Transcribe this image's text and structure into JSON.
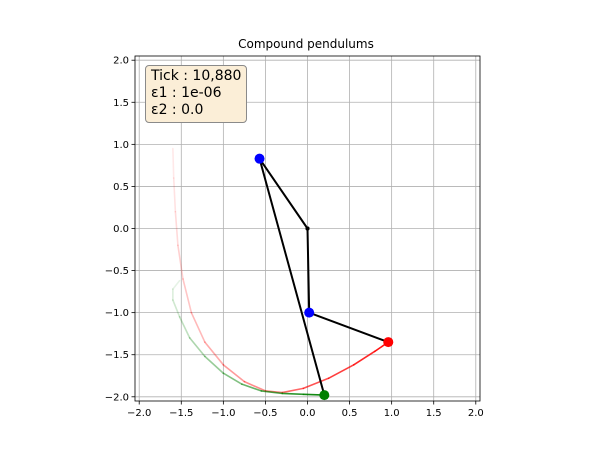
{
  "chart_data": {
    "type": "line",
    "title": "Compound pendulums",
    "xlabel": "",
    "ylabel": "",
    "xlim": [
      -2.05,
      2.05
    ],
    "ylim": [
      -2.05,
      2.05
    ],
    "xticks": [
      -2.0,
      -1.5,
      -1.0,
      -0.5,
      0.0,
      0.5,
      1.0,
      1.5,
      2.0
    ],
    "yticks": [
      -2.0,
      -1.5,
      -1.0,
      -0.5,
      0.0,
      0.5,
      1.0,
      1.5,
      2.0
    ],
    "xtick_labels": [
      "−2.0",
      "−1.5",
      "−1.0",
      "−0.5",
      "0.0",
      "0.5",
      "1.0",
      "1.5",
      "2.0"
    ],
    "ytick_labels": [
      "−2.0",
      "−1.5",
      "−1.0",
      "−0.5",
      "0.0",
      "0.5",
      "1.0",
      "1.5",
      "2.0"
    ],
    "grid": true,
    "info_box": {
      "tick_line": "Tick : 10,880",
      "eps1_line": "ε1 : 1e-06",
      "eps2_line": "ε2 : 0.0"
    },
    "pendulums": [
      {
        "color": "#ff0000",
        "pivot": [
          0.0,
          0.0
        ],
        "bob1": [
          0.02,
          -1.0
        ],
        "bob2": [
          0.96,
          -1.35
        ],
        "trail": [
          [
            -1.6,
            0.95
          ],
          [
            -1.59,
            0.6
          ],
          [
            -1.57,
            0.2
          ],
          [
            -1.54,
            -0.2
          ],
          [
            -1.48,
            -0.6
          ],
          [
            -1.38,
            -1.0
          ],
          [
            -1.22,
            -1.35
          ],
          [
            -1.0,
            -1.62
          ],
          [
            -0.75,
            -1.82
          ],
          [
            -0.5,
            -1.93
          ],
          [
            -0.3,
            -1.95
          ],
          [
            -0.05,
            -1.9
          ],
          [
            0.25,
            -1.78
          ],
          [
            0.55,
            -1.62
          ],
          [
            0.8,
            -1.46
          ],
          [
            0.96,
            -1.35
          ]
        ]
      },
      {
        "color": "#008000",
        "pivot": [
          0.0,
          0.0
        ],
        "bob1": [
          -0.57,
          0.83
        ],
        "bob2": [
          0.2,
          -1.98
        ],
        "trail": [
          [
            -1.52,
            -0.62
          ],
          [
            -1.6,
            -0.72
          ],
          [
            -1.6,
            -0.85
          ],
          [
            -1.52,
            -1.05
          ],
          [
            -1.4,
            -1.3
          ],
          [
            -1.22,
            -1.52
          ],
          [
            -1.0,
            -1.72
          ],
          [
            -0.78,
            -1.85
          ],
          [
            -0.55,
            -1.93
          ],
          [
            -0.3,
            -1.96
          ],
          [
            -0.05,
            -1.97
          ],
          [
            0.2,
            -1.98
          ]
        ]
      }
    ]
  }
}
